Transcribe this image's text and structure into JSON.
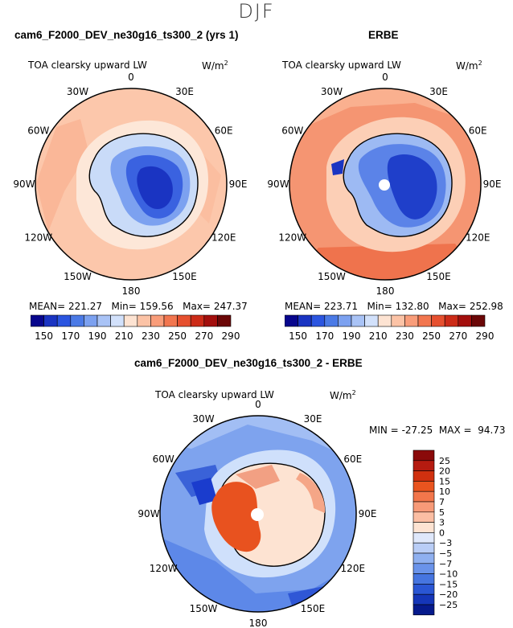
{
  "season": "DJF",
  "panels": [
    {
      "title": "cam6_F2000_DEV_ne30g16_ts300_2 (yrs 1)",
      "field": "TOA clearsky upward LW",
      "units": "W/m",
      "units_exp": "2",
      "stats": {
        "mean_label": "MEAN=",
        "mean": "221.27",
        "min_label": "Min=",
        "min": "159.56",
        "max_label": "Max=",
        "max": "247.37"
      },
      "colorbar": {
        "tick_labels": [
          "150",
          "170",
          "190",
          "210",
          "230",
          "250",
          "270",
          "290"
        ],
        "colors": [
          "#08068d",
          "#1a34c2",
          "#2b55e0",
          "#4b7ae6",
          "#7ca1f0",
          "#a9c3f6",
          "#d2e1fb",
          "#fde3d2",
          "#fcc3a6",
          "#f99d7a",
          "#f2764f",
          "#e6502f",
          "#cc2b18",
          "#a30f0d",
          "#6b0707"
        ]
      }
    },
    {
      "title": "ERBE",
      "field": "TOA clearsky upward LW",
      "units": "W/m",
      "units_exp": "2",
      "stats": {
        "mean_label": "MEAN=",
        "mean": "223.71",
        "min_label": "Min=",
        "min": "132.80",
        "max_label": "Max=",
        "max": "252.98"
      },
      "colorbar": {
        "tick_labels": [
          "150",
          "170",
          "190",
          "210",
          "230",
          "250",
          "270",
          "290"
        ],
        "colors": [
          "#08068d",
          "#1a34c2",
          "#2b55e0",
          "#4b7ae6",
          "#7ca1f0",
          "#a9c3f6",
          "#d2e1fb",
          "#fde3d2",
          "#fcc3a6",
          "#f99d7a",
          "#f2764f",
          "#e6502f",
          "#cc2b18",
          "#a30f0d",
          "#6b0707"
        ]
      }
    },
    {
      "title": "cam6_F2000_DEV_ne30g16_ts300_2 - ERBE",
      "field": "TOA clearsky upward LW",
      "units": "W/m",
      "units_exp": "2",
      "stats": {
        "min_label": "MIN =",
        "min": "-27.25",
        "max_label": "MAX =",
        "max": "94.73"
      },
      "colorbar": {
        "tick_labels": [
          "25",
          "20",
          "15",
          "10",
          "7",
          "5",
          "3",
          "0",
          "−3",
          "−5",
          "−7",
          "−10",
          "−15",
          "−20",
          "−25"
        ],
        "colors": [
          "#8a0a0a",
          "#b51b10",
          "#d0300f",
          "#e9541f",
          "#f2764b",
          "#f79a78",
          "#fbbea3",
          "#fde3d2",
          "#dfe8fb",
          "#b9cdf6",
          "#8fb0f0",
          "#6a93ea",
          "#4675e0",
          "#2a56d4",
          "#1536b8",
          "#061a8c"
        ]
      }
    }
  ],
  "lon_labels": [
    "0",
    "30E",
    "60E",
    "90E",
    "120E",
    "150E",
    "180",
    "150W",
    "120W",
    "90W",
    "60W",
    "30W"
  ]
}
